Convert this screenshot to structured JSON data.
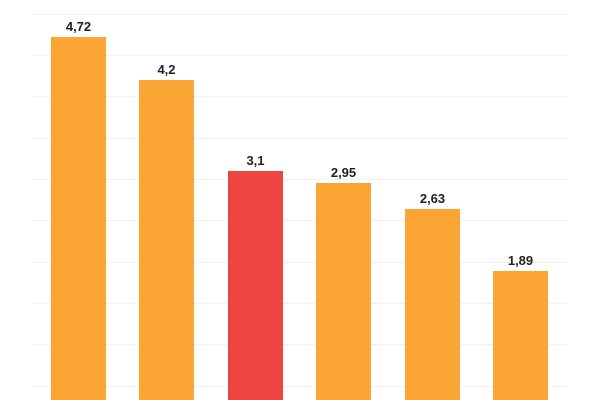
{
  "chart_data": {
    "type": "bar",
    "title": "",
    "xlabel": "",
    "ylabel": "",
    "categories": [
      "",
      "",
      "",
      "",
      "",
      ""
    ],
    "values": [
      4.72,
      4.2,
      3.1,
      2.95,
      2.63,
      1.89
    ],
    "value_labels": [
      "4,72",
      "4,2",
      "3,1",
      "2,95",
      "2,63",
      "1,89"
    ],
    "bar_colors": [
      "#FBA535",
      "#FBA535",
      "#EE4540",
      "#FBA535",
      "#FBA535",
      "#FBA535"
    ],
    "highlight_index": 2,
    "grid": true,
    "grid_step": 0.5,
    "ylim": [
      0,
      5.0
    ],
    "legend": null
  },
  "colors": {
    "default_bar": "#FBA535",
    "highlight_bar": "#EE4540",
    "gridline": "#f1f1f1",
    "label_text": "#222222",
    "background": "#ffffff"
  }
}
